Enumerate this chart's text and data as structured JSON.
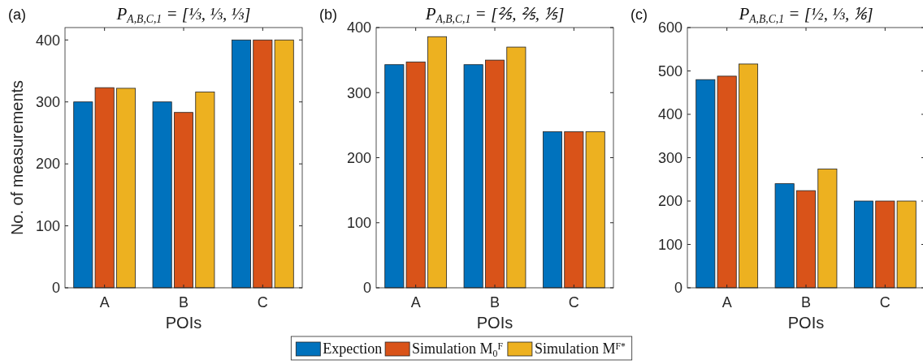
{
  "chart_data": [
    {
      "type": "bar",
      "title": "P$_{A,B,C,1}$ = [⅓, ⅓, ⅓]",
      "xlabel": "POIs",
      "ylabel": "No. of measurements",
      "annotations": [
        "(a)"
      ],
      "categories": [
        "A",
        "B",
        "C"
      ],
      "ylim": [
        0,
        420
      ],
      "yticks": [
        0,
        100,
        200,
        300,
        400
      ],
      "series": [
        {
          "color": "#0072bd",
          "values": [
            300,
            300,
            400
          ]
        },
        {
          "color": "#d95319",
          "values": [
            323,
            283,
            400
          ]
        },
        {
          "color": "#edb120",
          "values": [
            322,
            316,
            400
          ]
        }
      ]
    },
    {
      "type": "bar",
      "title": "P$_{A,B,C,1}$ = [⅖, ⅖, ⅕]",
      "xlabel": "POIs",
      "annotations": [
        "(b)"
      ],
      "categories": [
        "A",
        "B",
        "C"
      ],
      "ylim": [
        0,
        400
      ],
      "yticks": [
        0,
        100,
        200,
        300,
        400
      ],
      "legend": "bottom",
      "series": [
        {
          "name": "Expection",
          "color": "#0072bd",
          "values": [
            343,
            343,
            240
          ]
        },
        {
          "name": "Simulation M$_{0}$$^{F}$",
          "color": "#d95319",
          "values": [
            347,
            350,
            240
          ]
        },
        {
          "name": "Simulation M$^{F*}$",
          "color": "#edb120",
          "values": [
            386,
            370,
            240
          ]
        }
      ]
    },
    {
      "type": "bar",
      "title": "P$_{A,B,C,1}$ = [½, ⅓, ⅙]",
      "xlabel": "POIs",
      "annotations": [
        "(c)"
      ],
      "categories": [
        "A",
        "B",
        "C"
      ],
      "ylim": [
        0,
        600
      ],
      "yticks": [
        0,
        100,
        200,
        300,
        400,
        500,
        600
      ],
      "series": [
        {
          "color": "#0072bd",
          "values": [
            480,
            240,
            200
          ]
        },
        {
          "color": "#d95319",
          "values": [
            488,
            224,
            200
          ]
        },
        {
          "color": "#edb120",
          "values": [
            516,
            274,
            200
          ]
        }
      ]
    }
  ]
}
